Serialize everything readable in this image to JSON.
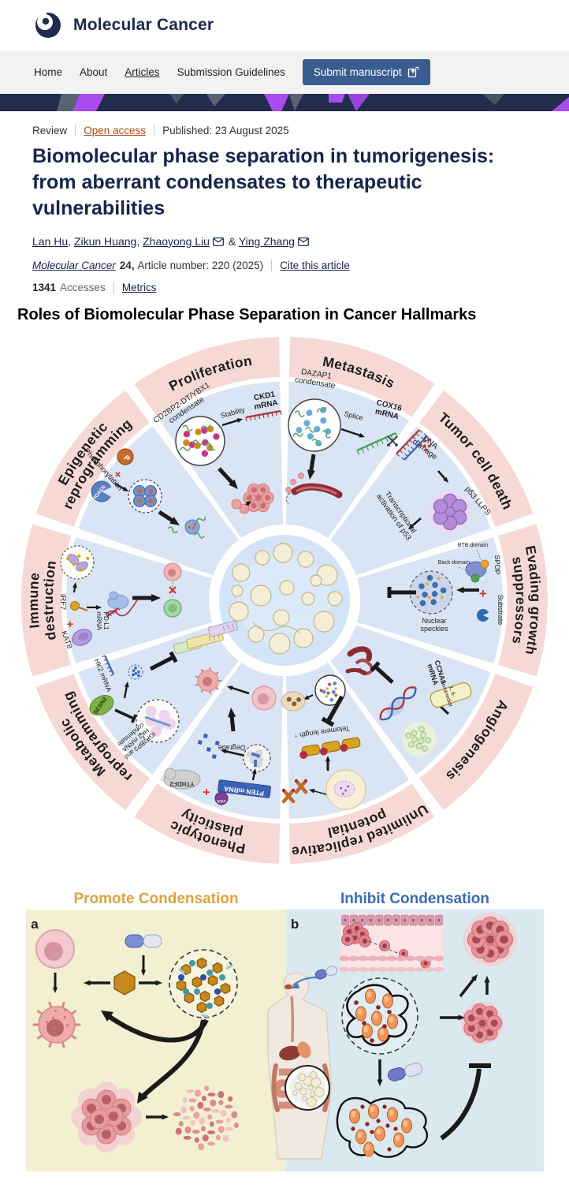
{
  "header": {
    "journal": "Molecular Cancer"
  },
  "nav": {
    "items": [
      "Home",
      "About",
      "Articles",
      "Submission Guidelines"
    ],
    "submit_label": "Submit manuscript"
  },
  "article": {
    "type": "Review",
    "access": "Open access",
    "published": "Published: 23 August 2025",
    "title": "Biomolecular phase separation in tumorigenesis: from aberrant condensates to therapeutic vulnerabilities",
    "authors": [
      "Lan Hu",
      "Zikun Huang",
      "Zhaoyong Liu",
      "Ying Zhang"
    ],
    "journal_link": "Molecular Cancer",
    "volume": "24,",
    "article_number": "Article number: 220 (2025)",
    "cite": "Cite this article",
    "accesses_count": "1341",
    "accesses_label": "Accesses",
    "metrics": "Metrics"
  },
  "figure1": {
    "title": "Roles of Biomolecular Phase Separation in Cancer Hallmarks",
    "wheel": {
      "segments": [
        {
          "id": "metastasis",
          "label": "Metastasis",
          "annotations": [
            "DAZAP1\ncondensate",
            "Splice",
            "COX16\nmRNA"
          ]
        },
        {
          "id": "tumor-cell-death",
          "label": "Tumor cell death",
          "annotations": [
            "DNA\ndamage",
            "p53 LLPS",
            "Transcriptional\nactivation of p53"
          ]
        },
        {
          "id": "evading-growth-suppressors",
          "label": "Evading growth\nsuppressors",
          "annotations": [
            "BTB domain",
            "Back domain",
            "SPOP",
            "Substrate",
            "Nuclear\nspeckles"
          ]
        },
        {
          "id": "angiogenesis",
          "label": "Angiogenesis",
          "annotations": [
            "CCNA1\nmRNA",
            "1, 6-\nHexanediol"
          ]
        },
        {
          "id": "unlimited-replicative-potential",
          "label": "Unlimited replicative\npotential",
          "annotations": [
            "Telomere length ↑"
          ]
        },
        {
          "id": "phenotypic-plasticity",
          "label": "Phenotypic\nplasticity",
          "annotations": [
            "Degrade",
            "PTEN mRNA",
            "m6A",
            "YTHDF2"
          ]
        },
        {
          "id": "metabolic-reprogramming",
          "label": "Metabolic\nreprogramming",
          "annotations": [
            "HK2 mRNA",
            "SESN2",
            "IGF2BP3 and\nHK2 mRNA\ncondensate"
          ]
        },
        {
          "id": "immune-destruction",
          "label": "Immune\ndestruction",
          "annotations": [
            "IRF7",
            "KAT8",
            "PD-L1\nmRNA"
          ]
        },
        {
          "id": "epigenetic-reprogramming",
          "label": "Epigenetic\nreprogramming",
          "annotations": [
            "Phosphorylation",
            "P",
            "HDAC6"
          ]
        },
        {
          "id": "proliferation",
          "label": "Proliferation",
          "annotations": [
            "CD2BP2-DT/YBX1\ncondensate",
            "Stability",
            "CKD1\nmRNA"
          ]
        }
      ]
    }
  },
  "figure2": {
    "panel_a": {
      "label": "a",
      "title": "Promote Condensation"
    },
    "panel_b": {
      "label": "b",
      "title": "Inhibit Condensation"
    }
  },
  "colors": {
    "brand_navy": "#1c2950",
    "button_blue": "#3a5d90",
    "open_access_orange": "#b3470e",
    "banner_purple": "#a94df0",
    "ring_pink": "#f6d9d4",
    "sector_blue": "#d9e4f4",
    "promote_gold": "#e0a23e",
    "inhibit_blue": "#3a6cb5"
  }
}
